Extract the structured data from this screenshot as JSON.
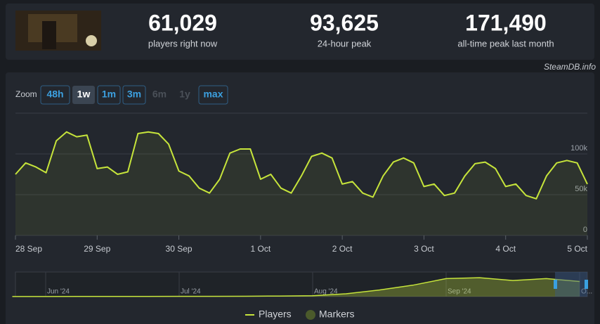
{
  "header": {
    "stats": [
      {
        "value": "61,029",
        "label": "players right now"
      },
      {
        "value": "93,625",
        "label": "24-hour peak"
      },
      {
        "value": "171,490",
        "label": "all-time peak last month"
      }
    ]
  },
  "credit": "SteamDB.info",
  "zoom": {
    "label": "Zoom",
    "buttons": [
      "48h",
      "1w",
      "1m",
      "3m",
      "6m",
      "1y",
      "max"
    ],
    "active": "1w",
    "disabled": [
      "6m",
      "1y"
    ]
  },
  "chart_data": [
    {
      "type": "line",
      "categories": [
        "28 Sep",
        null,
        null,
        null,
        null,
        null,
        null,
        null,
        "29 Sep",
        null,
        null,
        null,
        null,
        null,
        null,
        null,
        "30 Sep",
        null,
        null,
        null,
        null,
        null,
        null,
        null,
        "1 Oct",
        null,
        null,
        null,
        null,
        null,
        null,
        null,
        "2 Oct",
        null,
        null,
        null,
        null,
        null,
        null,
        null,
        "3 Oct",
        null,
        null,
        null,
        null,
        null,
        null,
        null,
        "4 Oct",
        null,
        null,
        null,
        null,
        null,
        null,
        null,
        "5 Oct"
      ],
      "series": [
        {
          "name": "Players",
          "color": "#c6e43b",
          "values": [
            75000,
            89000,
            84000,
            77000,
            116000,
            127000,
            121000,
            123000,
            82000,
            84000,
            75000,
            78000,
            125000,
            127000,
            125000,
            112000,
            79000,
            73000,
            58000,
            52000,
            69000,
            101000,
            106000,
            106000,
            69000,
            75000,
            58000,
            52000,
            73000,
            97000,
            101000,
            95000,
            63000,
            66000,
            52000,
            47000,
            73000,
            90000,
            95000,
            89000,
            60000,
            63000,
            49000,
            52000,
            73000,
            88000,
            90000,
            82000,
            60000,
            63000,
            49000,
            45000,
            73000,
            89000,
            92000,
            89000,
            63000
          ]
        }
      ],
      "ylim": [
        0,
        150000
      ],
      "yticks": [
        0,
        {
          "value": 50000,
          "label": "50k"
        },
        {
          "value": 100000,
          "label": "100k"
        }
      ],
      "grid": true
    },
    {
      "type": "area",
      "categories": [
        null,
        "Jun '24",
        null,
        null,
        null,
        "Jul '24",
        null,
        null,
        null,
        "Aug '24",
        null,
        null,
        null,
        "Sep '24",
        null,
        null,
        null,
        "O..."
      ],
      "series": [
        {
          "name": "Players",
          "color": "#c6e43b",
          "values": [
            500,
            500,
            800,
            1000,
            1000,
            1500,
            1500,
            2000,
            3000,
            5000,
            15000,
            35000,
            60000,
            95000,
            100000,
            85000,
            95000,
            80000
          ]
        }
      ],
      "ylim": [
        0,
        130000
      ]
    }
  ],
  "markers_legend": {
    "name": "Markers",
    "color": "#4b5a2b"
  }
}
